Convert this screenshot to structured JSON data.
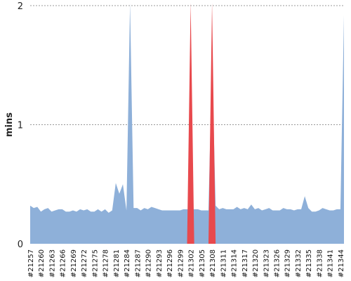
{
  "chart_data": {
    "type": "area",
    "ylabel": "mins",
    "ylim": [
      0,
      2
    ],
    "yticks": [
      0,
      1,
      2
    ],
    "grid": true,
    "x": [
      "21257",
      "21258",
      "21259",
      "21260",
      "21261",
      "21262",
      "21263",
      "21264",
      "21265",
      "21266",
      "21267",
      "21268",
      "21269",
      "21270",
      "21271",
      "21272",
      "21273",
      "21274",
      "21275",
      "21276",
      "21277",
      "21278",
      "21279",
      "21280",
      "21281",
      "21282",
      "21283",
      "21284",
      "21285",
      "21286",
      "21287",
      "21288",
      "21289",
      "21290",
      "21291",
      "21292",
      "21293",
      "21294",
      "21295",
      "21296",
      "21297",
      "21298",
      "21299",
      "21300",
      "21301",
      "21302",
      "21303",
      "21304",
      "21305",
      "21306",
      "21307",
      "21308",
      "21309",
      "21310",
      "21311",
      "21312",
      "21313",
      "21314",
      "21315",
      "21316",
      "21317",
      "21318",
      "21319",
      "21320",
      "21321",
      "21322",
      "21323",
      "21324",
      "21325",
      "21326",
      "21327",
      "21328",
      "21329",
      "21330",
      "21331",
      "21332",
      "21333",
      "21334",
      "21335",
      "21336",
      "21337",
      "21338",
      "21339",
      "21340",
      "21341",
      "21342",
      "21343",
      "21344",
      "21345"
    ],
    "x_tick_labels": [
      "#21257",
      "#21260",
      "#21263",
      "#21266",
      "#21269",
      "#21272",
      "#21275",
      "#21278",
      "#21281",
      "#21284",
      "#21287",
      "#21290",
      "#21293",
      "#21296",
      "#21299",
      "#21302",
      "#21305",
      "#21308",
      "#21311",
      "#21314",
      "#21317",
      "#21320",
      "#21323",
      "#21326",
      "#21329",
      "#21332",
      "#21335",
      "#21338",
      "#21341",
      "#21344"
    ],
    "series": [
      {
        "color": "#8eb0d9",
        "values": [
          0.32,
          0.3,
          0.31,
          0.27,
          0.29,
          0.3,
          0.27,
          0.28,
          0.29,
          0.29,
          0.27,
          0.27,
          0.28,
          0.27,
          0.29,
          0.28,
          0.29,
          0.27,
          0.27,
          0.29,
          0.27,
          0.29,
          0.26,
          0.28,
          0.51,
          0.42,
          0.5,
          0.28,
          2.02,
          0.3,
          0.3,
          0.28,
          0.3,
          0.29,
          0.31,
          0.3,
          0.29,
          0.28,
          0.28,
          0.28,
          0.28,
          0.28,
          0.28,
          0.29,
          0.29,
          0.29,
          0.29,
          0.29,
          0.28,
          0.28,
          0.28,
          1.55,
          0.32,
          0.29,
          0.3,
          0.29,
          0.29,
          0.29,
          0.31,
          0.29,
          0.3,
          0.29,
          0.33,
          0.29,
          0.3,
          0.28,
          0.29,
          0.3,
          0.28,
          0.28,
          0.28,
          0.3,
          0.29,
          0.29,
          0.28,
          0.29,
          0.29,
          0.4,
          0.3,
          0.27,
          0.27,
          0.28,
          0.3,
          0.29,
          0.28,
          0.28,
          0.29,
          0.29,
          1.92
        ]
      },
      {
        "color": "#e8494d",
        "values": [
          0,
          0,
          0,
          0,
          0,
          0,
          0,
          0,
          0,
          0,
          0,
          0,
          0,
          0,
          0,
          0,
          0,
          0,
          0,
          0,
          0,
          0,
          0,
          0,
          0,
          0,
          0,
          0,
          0,
          0,
          0,
          0,
          0,
          0,
          0,
          0,
          0,
          0,
          0,
          0,
          0,
          0,
          0,
          0,
          0,
          2.05,
          0,
          0,
          0,
          0,
          0,
          2.05,
          0,
          0,
          0,
          0,
          0,
          0,
          0,
          0,
          0,
          0,
          0,
          0,
          0,
          0,
          0,
          0,
          0,
          0,
          0,
          0,
          0,
          0,
          0,
          0,
          0,
          0,
          0,
          0,
          0,
          0,
          0,
          0,
          0,
          0,
          0,
          0,
          0
        ]
      }
    ]
  }
}
